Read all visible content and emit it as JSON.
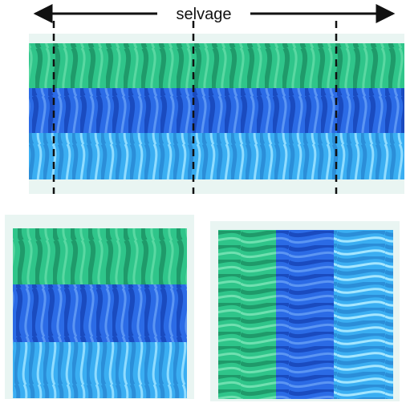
{
  "selvage_label": "selvage",
  "colors": {
    "green": "#2fc58a",
    "green_dark": "#1f9a6a",
    "blue": "#2b6be6",
    "blue_dark": "#1a4bbf",
    "cyan": "#3aaef2",
    "cyan_dark": "#2b8ed8",
    "backdrop": "#e9f5f2",
    "line": "#111111"
  },
  "strip": {
    "bands": [
      "green",
      "blue",
      "cyan"
    ],
    "cut_lines": 3
  },
  "panel_left": {
    "bands": [
      "green",
      "blue",
      "cyan"
    ],
    "orientation": "horizontal"
  },
  "panel_right": {
    "columns": [
      "green",
      "blue",
      "cyan"
    ],
    "orientation": "vertical"
  }
}
